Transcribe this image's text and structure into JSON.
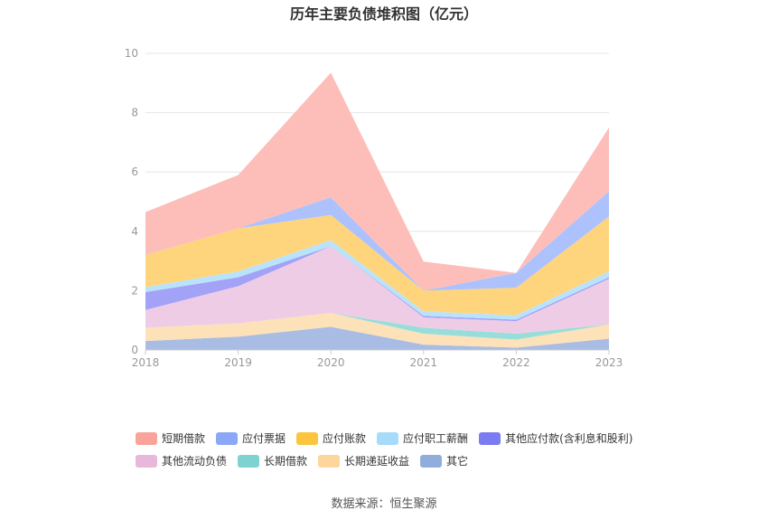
{
  "chart_data": {
    "type": "area",
    "stacked": true,
    "title": "历年主要负债堆积图（亿元）",
    "categories": [
      "2018",
      "2019",
      "2020",
      "2021",
      "2022",
      "2023"
    ],
    "ylim": [
      0,
      10
    ],
    "yticks": [
      0,
      2,
      4,
      6,
      8,
      10
    ],
    "grid": true,
    "legend_position": "bottom",
    "series": [
      {
        "name": "其它",
        "color": "#a9bce3",
        "values": [
          0.3,
          0.45,
          0.78,
          0.18,
          0.08,
          0.38
        ]
      },
      {
        "name": "长期递延收益",
        "color": "#fde1b8",
        "values": [
          0.45,
          0.45,
          0.47,
          0.37,
          0.27,
          0.48
        ]
      },
      {
        "name": "长期借款",
        "color": "#97dedb",
        "values": [
          0.0,
          0.0,
          0.0,
          0.2,
          0.2,
          0.0
        ]
      },
      {
        "name": "其他流动负债",
        "color": "#efcce5",
        "values": [
          0.6,
          1.25,
          2.25,
          0.35,
          0.42,
          1.54
        ]
      },
      {
        "name": "其他应付款(含利息和股利)",
        "color": "#a2a2f7",
        "values": [
          0.6,
          0.3,
          0.0,
          0.05,
          0.05,
          0.05
        ]
      },
      {
        "name": "应付职工薪酬",
        "color": "#b9e3fb",
        "values": [
          0.17,
          0.2,
          0.2,
          0.15,
          0.15,
          0.2
        ]
      },
      {
        "name": "应付账款",
        "color": "#fed57d",
        "values": [
          1.08,
          1.45,
          0.85,
          0.7,
          0.93,
          1.85
        ]
      },
      {
        "name": "应付票据",
        "color": "#adc2fd",
        "values": [
          0.0,
          0.0,
          0.6,
          0.0,
          0.5,
          0.85
        ]
      },
      {
        "name": "短期借款",
        "color": "#fdbeba",
        "values": [
          1.45,
          1.8,
          4.2,
          0.98,
          0.0,
          2.15
        ]
      }
    ],
    "legend": [
      {
        "name": "短期借款",
        "color": "#f9a39a"
      },
      {
        "name": "应付票据",
        "color": "#8ba8f8"
      },
      {
        "name": "应付账款",
        "color": "#fcc53e"
      },
      {
        "name": "应付职工薪酬",
        "color": "#a6dcfa"
      },
      {
        "name": "其他应付款(含利息和股利)",
        "color": "#7b7bf2"
      },
      {
        "name": "其他流动负债",
        "color": "#e8b8da"
      },
      {
        "name": "长期借款",
        "color": "#7ed3d1"
      },
      {
        "name": "长期递延收益",
        "color": "#fdd69c"
      },
      {
        "name": "其它",
        "color": "#8faedc"
      }
    ]
  },
  "footer": {
    "source": "数据来源：恒生聚源"
  }
}
